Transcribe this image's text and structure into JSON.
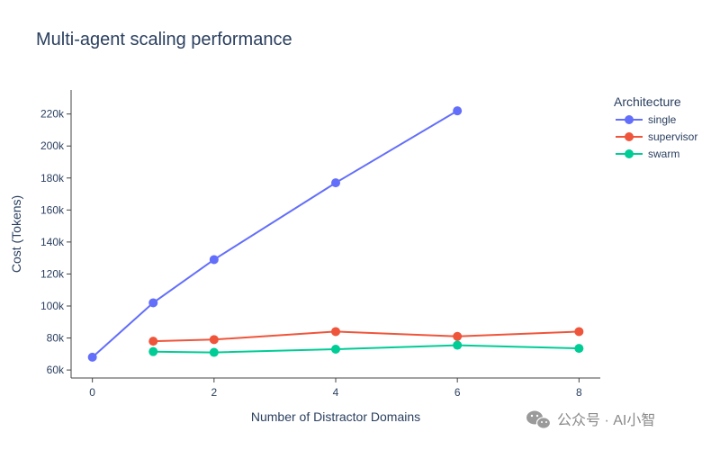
{
  "chart_data": {
    "type": "line",
    "title": "Multi-agent scaling performance",
    "xlabel": "Number of Distractor Domains",
    "ylabel": "Cost (Tokens)",
    "xlim": [
      -0.35,
      8.35
    ],
    "ylim": [
      55000,
      235000
    ],
    "xticks": [
      0,
      2,
      4,
      6,
      8
    ],
    "xtick_labels": [
      "0",
      "2",
      "4",
      "6",
      "8"
    ],
    "yticks": [
      60000,
      80000,
      100000,
      120000,
      140000,
      160000,
      180000,
      200000,
      220000
    ],
    "ytick_labels": [
      "60k",
      "80k",
      "100k",
      "120k",
      "140k",
      "160k",
      "180k",
      "200k",
      "220k"
    ],
    "grid": false,
    "legend_title": "Architecture",
    "legend_position": "top-right",
    "series": [
      {
        "name": "single",
        "color": "#636efa",
        "x": [
          0,
          1,
          2,
          4,
          6
        ],
        "y": [
          68000,
          102000,
          129000,
          177000,
          222000
        ]
      },
      {
        "name": "supervisor",
        "color": "#ef553b",
        "x": [
          1,
          2,
          4,
          6,
          8
        ],
        "y": [
          78000,
          79000,
          84000,
          81000,
          84000
        ]
      },
      {
        "name": "swarm",
        "color": "#00cc96",
        "x": [
          1,
          2,
          4,
          6,
          8
        ],
        "y": [
          71500,
          71000,
          73000,
          75500,
          73500
        ]
      }
    ]
  },
  "watermark": {
    "text": "公众号 · AI小智",
    "icon": "wechat-icon"
  }
}
